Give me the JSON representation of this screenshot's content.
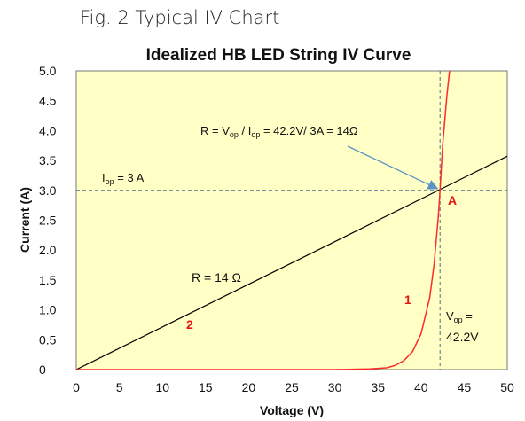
{
  "caption": "Fig. 2 Typical IV Chart",
  "chart_data": {
    "type": "line",
    "title": "Idealized HB LED String IV Curve",
    "xlabel": "Voltage (V)",
    "ylabel": "Current (A)",
    "xlim": [
      0,
      50
    ],
    "ylim": [
      0,
      5.0
    ],
    "x_ticks": [
      "0",
      "5",
      "10",
      "15",
      "20",
      "25",
      "30",
      "35",
      "40",
      "45",
      "50"
    ],
    "y_ticks": [
      "0",
      "0.5",
      "1.0",
      "1.5",
      "2.0",
      "2.5",
      "3.0",
      "3.5",
      "4.0",
      "4.5",
      "5.0"
    ],
    "background_color": "#ffffc6",
    "grid": false,
    "series": [
      {
        "color": "#000000",
        "x": [
          0,
          50
        ],
        "y": [
          0,
          3.5714
        ]
      },
      {
        "color": "#ff2a2a",
        "x": [
          0,
          30,
          34,
          36,
          37,
          38,
          39,
          40,
          41,
          41.5,
          42,
          42.2,
          42.5,
          43,
          43.3
        ],
        "y": [
          0,
          0,
          0.01,
          0.03,
          0.07,
          0.15,
          0.3,
          0.6,
          1.2,
          1.75,
          2.55,
          3.0,
          3.75,
          4.6,
          5.0
        ]
      }
    ],
    "reference_lines": [
      {
        "axis": "y",
        "value": 3.0,
        "color": "#4a6f8a"
      },
      {
        "axis": "x",
        "value": 42.2,
        "color": "#4a6f8a"
      }
    ],
    "annotations": {
      "iop": {
        "main": "I",
        "sub": "op",
        "rest": " = 3 A"
      },
      "formula": {
        "p1": "R = V",
        "s1": "op",
        "p2": " / I",
        "s2": "op",
        "p3": " = 42.2V/ 3A = 14Ω"
      },
      "resistance": "R = 14 Ω",
      "vop_line1": {
        "main": "V",
        "sub": "op",
        "rest": " ="
      },
      "vop_line2": "42.2V",
      "point_label": "A",
      "line_label_linear": "2",
      "line_label_led": "1",
      "label_color": "#e8120e"
    },
    "arrow_color": "#5b93c6"
  }
}
